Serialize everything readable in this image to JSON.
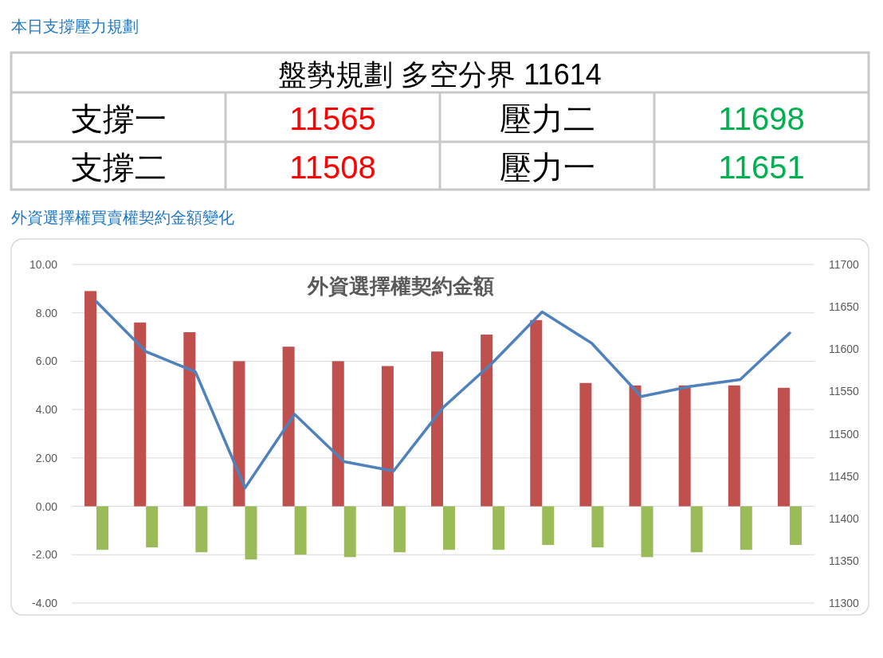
{
  "chart_data": [
    {
      "type": "other",
      "title": "本日支撐壓力規劃",
      "subtitle": "盤勢規劃 多空分界 11614",
      "annotations": [
        "支撐一",
        "11565",
        "壓力二",
        "11698",
        "支撐二",
        "11508",
        "壓力一",
        "11651"
      ],
      "colors": [
        "#000000",
        "#ff0000",
        "#000000",
        "#00b050",
        "#000000",
        "#ff0000",
        "#000000",
        "#00b050"
      ]
    },
    {
      "type": "bar",
      "subtitle": "外資選擇權買賣權契約金額變化",
      "title": "外資選擇權契約金額",
      "categories": [
        null,
        null,
        null,
        null,
        null,
        null,
        null,
        null,
        null,
        null,
        null,
        null,
        null,
        null,
        null
      ],
      "series": [
        {
          "type": "bar",
          "color": "#c0504d",
          "values": [
            8.9,
            7.6,
            7.2,
            6.0,
            6.6,
            6.0,
            5.8,
            6.4,
            7.1,
            7.7,
            5.1,
            5.0,
            5.0,
            5.0,
            4.9
          ]
        },
        {
          "type": "bar",
          "color": "#9bbb59",
          "values": [
            -1.8,
            -1.7,
            -1.9,
            -2.2,
            -2.0,
            -2.1,
            -1.9,
            -1.8,
            -1.8,
            -1.6,
            -1.7,
            -2.1,
            -1.9,
            -1.8,
            -1.6
          ]
        },
        {
          "type": "line",
          "axis": "y2",
          "color": "#4f81bd",
          "values": [
            11656,
            11597,
            11573,
            11436,
            11523,
            11467,
            11456,
            11531,
            11584,
            11644,
            11607,
            11544,
            11556,
            11564,
            11619
          ]
        }
      ],
      "ylim": [
        -4,
        10
      ],
      "yticks": [
        {
          "value": -4,
          "label": "-4.00"
        },
        {
          "value": -2,
          "label": "-2.00"
        },
        {
          "value": 0,
          "label": "0.00"
        },
        {
          "value": 2,
          "label": "2.00"
        },
        {
          "value": 4,
          "label": "4.00"
        },
        {
          "value": 6,
          "label": "6.00"
        },
        {
          "value": 8,
          "label": "8.00"
        },
        {
          "value": 10,
          "label": "10.00"
        }
      ],
      "y2lim": [
        11300,
        11700
      ],
      "y2ticks": [
        11300,
        11350,
        11400,
        11450,
        11500,
        11550,
        11600,
        11650,
        11700
      ],
      "grid": "y",
      "marker": "none",
      "line_style": "solid"
    }
  ]
}
